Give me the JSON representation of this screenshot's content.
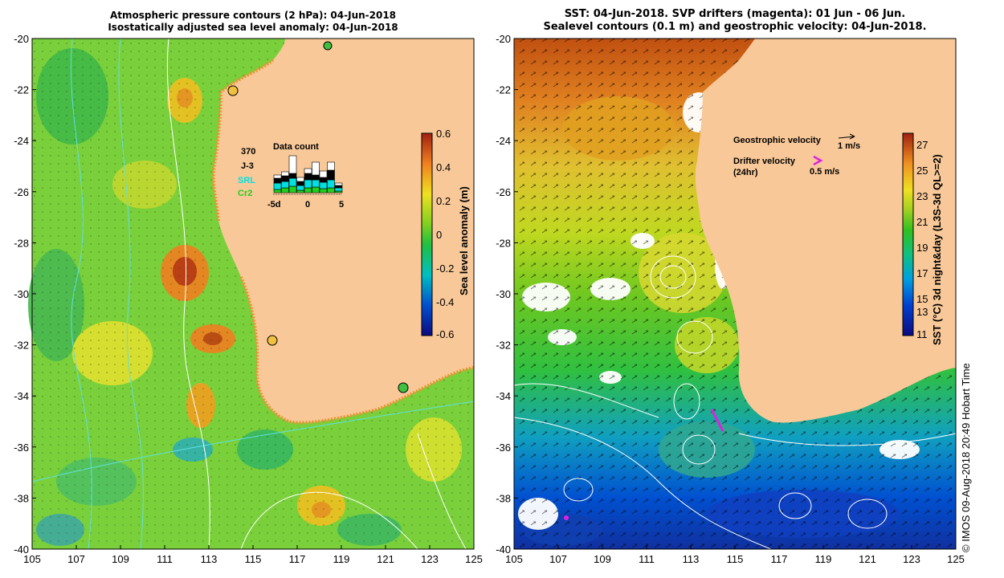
{
  "left_panel": {
    "title_line1": "Atmospheric pressure contours (2 hPa): 04-Jun-2018",
    "title_line2": "Isostatically adjusted sea level anomaly: 04-Jun-2018",
    "data_count": {
      "title": "Data count",
      "total": "370",
      "legend": [
        "J-3",
        "SRL",
        "Cr2"
      ],
      "legend_colors": [
        "#000000",
        "#00e0e0",
        "#20d020"
      ],
      "x_ticks": [
        "-5d",
        "0",
        "5"
      ]
    },
    "colorbar": {
      "label": "Sea level anomaly (m)",
      "ticks": [
        "0.6",
        "0.4",
        "0.2",
        "0",
        "-0.2",
        "-0.4",
        "-0.6"
      ]
    }
  },
  "right_panel": {
    "title_line1": "SST: 04-Jun-2018. SVP drifters (magenta): 01 Jun - 06 Jun.",
    "title_line2": "Sealevel contours (0.1 m) and geostrophic velocity: 04-Jun-2018.",
    "geostrophic_label": "Geostrophic velocity",
    "geostrophic_scale": "1 m/s",
    "drifter_label_1": "Drifter velocity",
    "drifter_label_2": "(24hr)",
    "drifter_scale": "0.5 m/s",
    "colorbar": {
      "label": "SST (°C) 3d night&day (L3S-3d QL>=2)",
      "ticks": [
        "27",
        "25",
        "23",
        "21",
        "19",
        "17",
        "15",
        "13",
        "11"
      ]
    }
  },
  "axes": {
    "y_ticks": [
      "-20",
      "-22",
      "-24",
      "-26",
      "-28",
      "-30",
      "-32",
      "-34",
      "-36",
      "-38",
      "-40"
    ],
    "x_ticks": [
      "105",
      "107",
      "109",
      "111",
      "113",
      "115",
      "117",
      "119",
      "121",
      "123",
      "125"
    ]
  },
  "credit": "© IMOS 09-Aug-2018 20:49 Hobart Time"
}
